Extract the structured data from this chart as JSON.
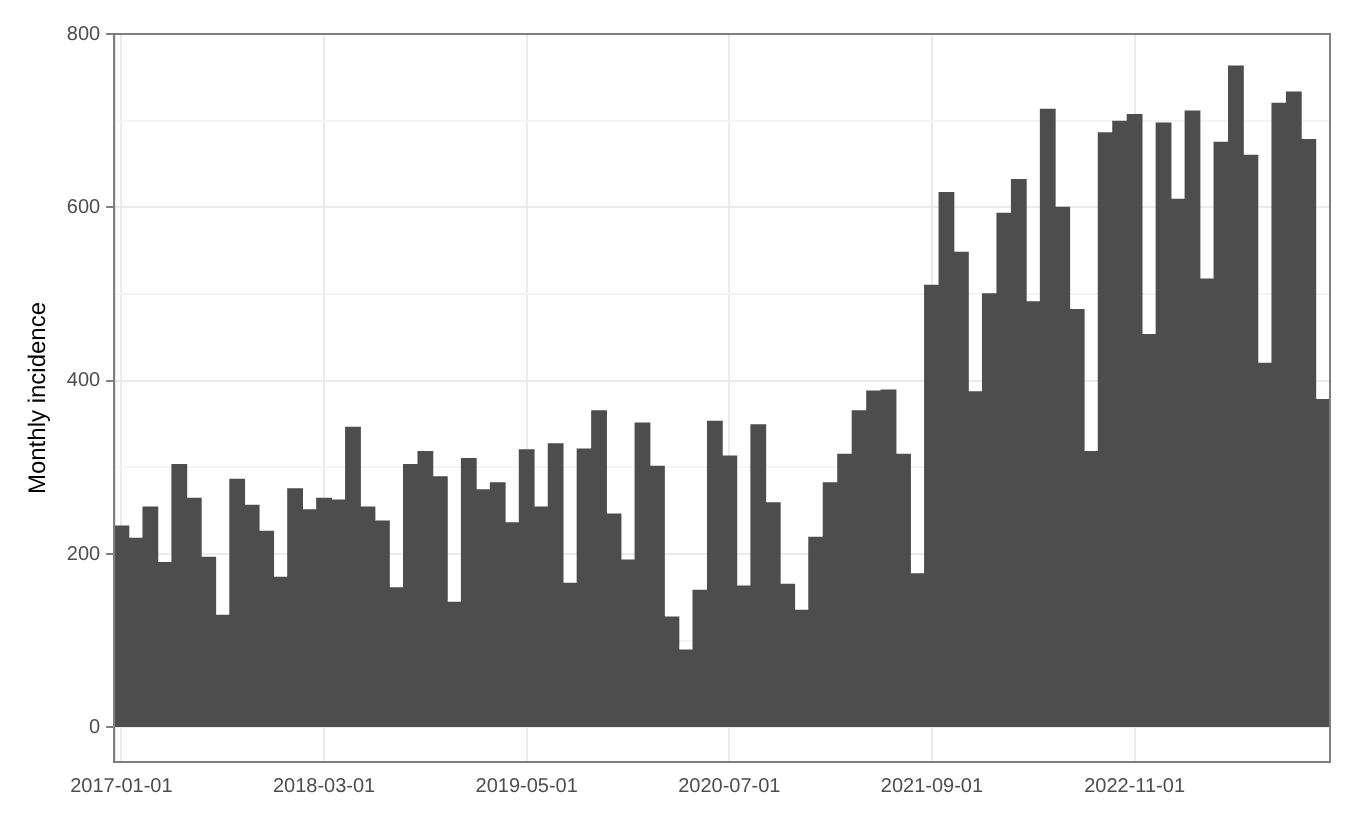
{
  "chart_data": {
    "type": "bar",
    "ylabel": "Monthly incidence",
    "categories": [
      "2017-01-01",
      null,
      null,
      null,
      null,
      null,
      null,
      null,
      null,
      null,
      null,
      null,
      null,
      null,
      "2018-03-01",
      null,
      null,
      null,
      null,
      null,
      null,
      null,
      null,
      null,
      null,
      null,
      null,
      null,
      "2019-05-01",
      null,
      null,
      null,
      null,
      null,
      null,
      null,
      null,
      null,
      null,
      null,
      null,
      null,
      "2020-07-01",
      null,
      null,
      null,
      null,
      null,
      null,
      null,
      null,
      null,
      null,
      null,
      null,
      null,
      "2021-09-01",
      null,
      null,
      null,
      null,
      null,
      null,
      null,
      null,
      null,
      null,
      null,
      null,
      null,
      "2022-11-01",
      null,
      null,
      null,
      null,
      null,
      null,
      null,
      null,
      null,
      null,
      null,
      null,
      null
    ],
    "values": [
      232,
      218,
      254,
      190,
      303,
      264,
      196,
      129,
      286,
      256,
      226,
      173,
      275,
      251,
      264,
      262,
      346,
      254,
      238,
      161,
      303,
      318,
      289,
      144,
      310,
      274,
      282,
      236,
      320,
      254,
      327,
      166,
      321,
      365,
      246,
      193,
      351,
      301,
      127,
      89,
      158,
      353,
      313,
      163,
      349,
      259,
      165,
      135,
      219,
      282,
      315,
      365,
      388,
      389,
      315,
      177,
      510,
      617,
      548,
      387,
      500,
      593,
      632,
      491,
      713,
      600,
      482,
      318,
      686,
      699,
      707,
      453,
      697,
      609,
      711,
      517,
      675,
      763,
      660,
      420,
      720,
      733,
      678,
      378
    ],
    "color": "#4d4d4d",
    "ylim": [
      -40,
      800
    ],
    "yticks": [
      0,
      {
        "value": 100,
        "label": null
      },
      200,
      {
        "value": 300,
        "label": null
      },
      400,
      {
        "value": 500,
        "label": null
      },
      600,
      {
        "value": 700,
        "label": null
      },
      800
    ],
    "grid": true
  }
}
